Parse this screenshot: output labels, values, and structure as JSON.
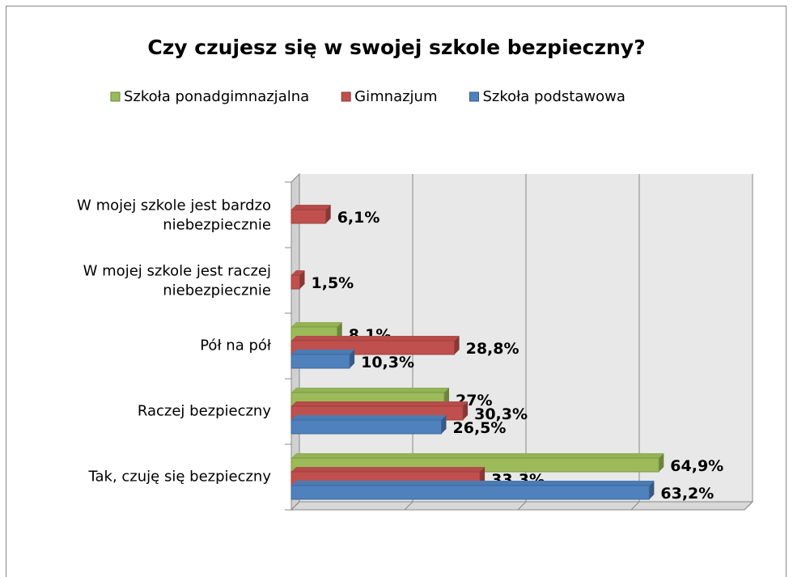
{
  "chart_data": {
    "type": "bar3d_horizontal",
    "title": "Czy czujesz się w swojej szkole bezpieczny?",
    "categories": [
      "W mojej szkole jest bardzo niebezpiecznie",
      "W mojej szkole jest raczej niebezpiecznie",
      "Pół na pół",
      "Raczej bezpieczny",
      "Tak, czuję się bezpieczny"
    ],
    "series": [
      {
        "name": "Szkoła ponadgimnazjalna",
        "color": "#9bbb59",
        "values": [
          null,
          null,
          8.1,
          27,
          64.9
        ],
        "value_labels": [
          null,
          null,
          "8,1%",
          "27%",
          "64,9%"
        ]
      },
      {
        "name": "Gimnazjum",
        "color": "#c0504d",
        "values": [
          6.1,
          1.5,
          28.8,
          30.3,
          33.3
        ],
        "value_labels": [
          "6,1%",
          "1,5%",
          "28,8%",
          "30,3%",
          "33,3%"
        ]
      },
      {
        "name": "Szkoła podstawowa",
        "color": "#4f81bd",
        "values": [
          null,
          null,
          10.3,
          26.5,
          63.2
        ],
        "value_labels": [
          null,
          null,
          "10,3%",
          "26,5%",
          "63,2%"
        ]
      }
    ],
    "xlim": [
      0,
      80
    ],
    "xticks": [
      0,
      20,
      40,
      60,
      80
    ],
    "grid": true,
    "legend": "top"
  }
}
